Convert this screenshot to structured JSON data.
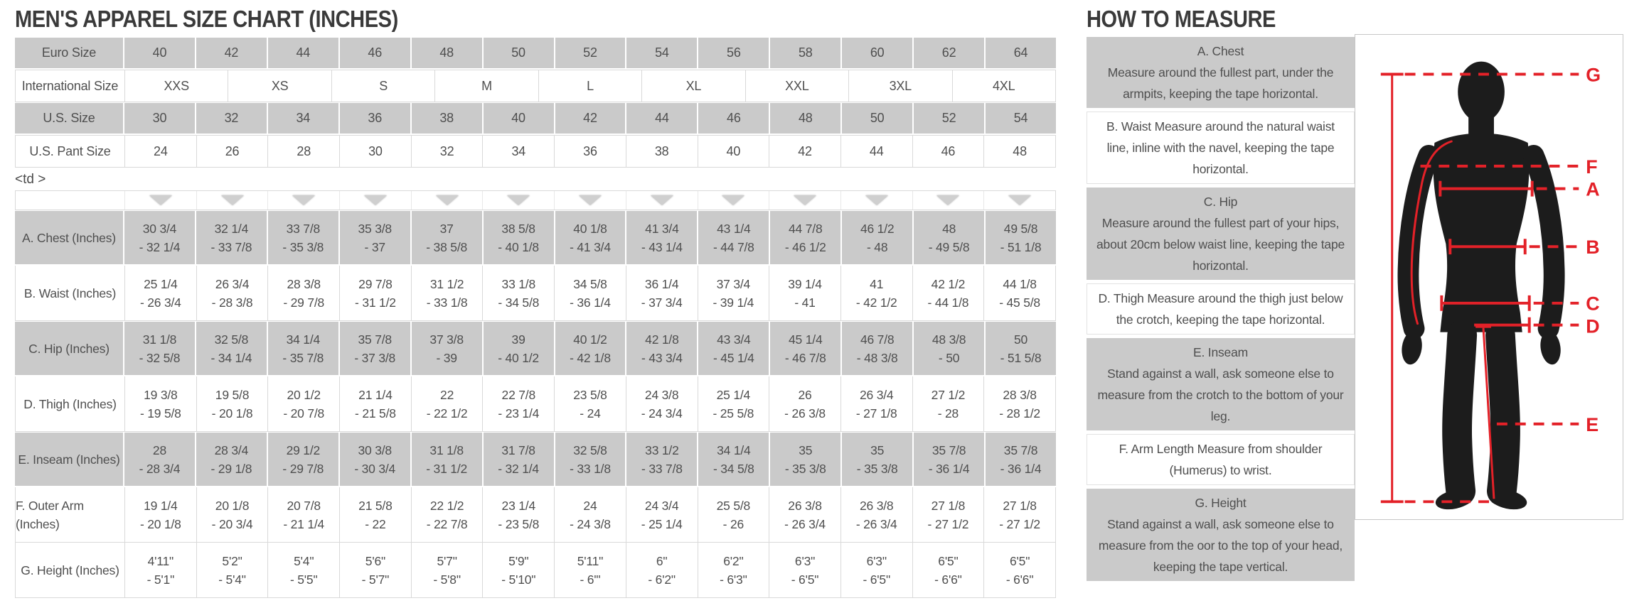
{
  "page": {
    "title_left": "MEN'S APPAREL SIZE CHART (INCHES)",
    "title_right": "HOW TO MEASURE",
    "glitch_text": "<td >"
  },
  "colors": {
    "accent": "#e32128",
    "shaded": "#cacaca",
    "text": "#4f4f4f",
    "title": "#3a3a3a",
    "border": "#d9d9d9",
    "silhouette": "#1c1c1c"
  },
  "size_table": {
    "header_rows": [
      {
        "key": "euro-size",
        "label": "Euro Size",
        "shaded": true,
        "cells": [
          "40",
          "42",
          "44",
          "46",
          "48",
          "50",
          "52",
          "54",
          "56",
          "58",
          "60",
          "62",
          "64"
        ]
      },
      {
        "key": "international-size",
        "label": "International Size",
        "shaded": false,
        "cells": [
          "XXS",
          "XS",
          "S",
          "M",
          "L",
          "XL",
          "XXL",
          "3XL",
          "4XL"
        ]
      },
      {
        "key": "us-size",
        "label": "U.S. Size",
        "shaded": true,
        "cells": [
          "30",
          "32",
          "34",
          "36",
          "38",
          "40",
          "42",
          "44",
          "46",
          "48",
          "50",
          "52",
          "54"
        ]
      },
      {
        "key": "us-pant-size",
        "label": "U.S. Pant Size",
        "shaded": false,
        "cells": [
          "24",
          "26",
          "28",
          "30",
          "32",
          "34",
          "36",
          "38",
          "40",
          "42",
          "44",
          "46",
          "48"
        ]
      }
    ],
    "triangle_row": {
      "icon": "triangle-down-icon",
      "count": 13
    },
    "body_rows": [
      {
        "key": "chest",
        "label": "A. Chest (Inches)",
        "shaded": true,
        "ranges": [
          [
            "30 3/4",
            "32 1/4"
          ],
          [
            "32 1/4",
            "33 7/8"
          ],
          [
            "33 7/8",
            "35 3/8"
          ],
          [
            "35 3/8",
            "37"
          ],
          [
            "37",
            "38 5/8"
          ],
          [
            "38 5/8",
            "40 1/8"
          ],
          [
            "40 1/8",
            "41 3/4"
          ],
          [
            "41 3/4",
            "43 1/4"
          ],
          [
            "43 1/4",
            "44 7/8"
          ],
          [
            "44 7/8",
            "46 1/2"
          ],
          [
            "46 1/2",
            "48"
          ],
          [
            "48",
            "49 5/8"
          ],
          [
            "49 5/8",
            "51 1/8"
          ]
        ]
      },
      {
        "key": "waist",
        "label": "B. Waist (Inches)",
        "shaded": false,
        "ranges": [
          [
            "25 1/4",
            "26 3/4"
          ],
          [
            "26 3/4",
            "28 3/8"
          ],
          [
            "28 3/8",
            "29 7/8"
          ],
          [
            "29 7/8",
            "31 1/2"
          ],
          [
            "31 1/2",
            "33 1/8"
          ],
          [
            "33 1/8",
            "34 5/8"
          ],
          [
            "34 5/8",
            "36 1/4"
          ],
          [
            "36 1/4",
            "37 3/4"
          ],
          [
            "37 3/4",
            "39 1/4"
          ],
          [
            "39 1/4",
            "41"
          ],
          [
            "41",
            "42 1/2"
          ],
          [
            "42 1/2",
            "44 1/8"
          ],
          [
            "44 1/8",
            "45 5/8"
          ]
        ]
      },
      {
        "key": "hip",
        "label": "C. Hip (Inches)",
        "shaded": true,
        "ranges": [
          [
            "31 1/8",
            "32 5/8"
          ],
          [
            "32 5/8",
            "34 1/4"
          ],
          [
            "34 1/4",
            "35 7/8"
          ],
          [
            "35 7/8",
            "37 3/8"
          ],
          [
            "37 3/8",
            "39"
          ],
          [
            "39",
            "40 1/2"
          ],
          [
            "40 1/2",
            "42 1/8"
          ],
          [
            "42 1/8",
            "43 3/4"
          ],
          [
            "43 3/4",
            "45 1/4"
          ],
          [
            "45 1/4",
            "46 7/8"
          ],
          [
            "46 7/8",
            "48 3/8"
          ],
          [
            "48 3/8",
            "50"
          ],
          [
            "50",
            "51 5/8"
          ]
        ]
      },
      {
        "key": "thigh",
        "label": "D. Thigh (Inches)",
        "shaded": false,
        "ranges": [
          [
            "19 3/8",
            "19 5/8"
          ],
          [
            "19 5/8",
            "20 1/8"
          ],
          [
            "20 1/2",
            "20 7/8"
          ],
          [
            "21 1/4",
            "21 5/8"
          ],
          [
            "22",
            "22 1/2"
          ],
          [
            "22 7/8",
            "23 1/4"
          ],
          [
            "23 5/8",
            "24"
          ],
          [
            "24 3/8",
            "24 3/4"
          ],
          [
            "25 1/4",
            "25 5/8"
          ],
          [
            "26",
            "26 3/8"
          ],
          [
            "26 3/4",
            "27 1/8"
          ],
          [
            "27 1/2",
            "28"
          ],
          [
            "28 3/8",
            "28 1/2"
          ]
        ]
      },
      {
        "key": "inseam",
        "label": "E. Inseam (Inches)",
        "shaded": true,
        "ranges": [
          [
            "28",
            "28 3/4"
          ],
          [
            "28 3/4",
            "29 1/8"
          ],
          [
            "29 1/2",
            "29 7/8"
          ],
          [
            "30 3/8",
            "30 3/4"
          ],
          [
            "31 1/8",
            "31 1/2"
          ],
          [
            "31 7/8",
            "32 1/4"
          ],
          [
            "32 5/8",
            "33 1/8"
          ],
          [
            "33 1/2",
            "33 7/8"
          ],
          [
            "34 1/4",
            "34 5/8"
          ],
          [
            "35",
            "35 3/8"
          ],
          [
            "35",
            "35 3/8"
          ],
          [
            "35 7/8",
            "36 1/4"
          ],
          [
            "35 7/8",
            "36 1/4"
          ]
        ]
      },
      {
        "key": "outer-arm",
        "label": "F. Outer Arm (Inches)",
        "shaded": false,
        "ranges": [
          [
            "19 1/4",
            "20 1/8"
          ],
          [
            "20 1/8",
            "20 3/4"
          ],
          [
            "20 7/8",
            "21 1/4"
          ],
          [
            "21 5/8",
            "22"
          ],
          [
            "22 1/2",
            "22 7/8"
          ],
          [
            "23 1/4",
            "23 5/8"
          ],
          [
            "24",
            "24 3/8"
          ],
          [
            "24 3/4",
            "25 1/4"
          ],
          [
            "25 5/8",
            "26"
          ],
          [
            "26 3/8",
            "26 3/4"
          ],
          [
            "26 3/8",
            "26 3/4"
          ],
          [
            "27 1/8",
            "27 1/2"
          ],
          [
            "27 1/8",
            "27 1/2"
          ]
        ]
      },
      {
        "key": "height",
        "label": "G. Height (Inches)",
        "shaded": false,
        "ranges": [
          [
            "4'11\"",
            "5'1\""
          ],
          [
            "5'2\"",
            "5'4\""
          ],
          [
            "5'4\"",
            "5'5\""
          ],
          [
            "5'6\"",
            "5'7\""
          ],
          [
            "5'7\"",
            "5'8\""
          ],
          [
            "5'9\"",
            "5'10\""
          ],
          [
            "5'11\"",
            "6'\""
          ],
          [
            "6\"",
            "6'2\""
          ],
          [
            "6'2\"",
            "6'3\""
          ],
          [
            "6'3\"",
            "6'5\""
          ],
          [
            "6'3\"",
            "6'5\""
          ],
          [
            "6'5\"",
            "6'6\""
          ],
          [
            "6'5\"",
            "6'6\""
          ]
        ]
      }
    ]
  },
  "how_to_measure": {
    "blocks": [
      {
        "shaded": true,
        "heading": "A. Chest",
        "text": "Measure around the fullest part, under the armpits, keeping the tape horizontal."
      },
      {
        "shaded": false,
        "heading": "",
        "text": "B. Waist Measure around the natural waist line, inline with the navel, keeping the tape horizontal."
      },
      {
        "shaded": true,
        "heading": "C. Hip",
        "text": "Measure around the fullest part of your hips, about 20cm below waist line, keeping the tape horizontal."
      },
      {
        "shaded": false,
        "heading": "",
        "text": "D. Thigh Measure around the thigh just below the crotch, keeping the tape horizontal."
      },
      {
        "shaded": true,
        "heading": "E. Inseam",
        "text": "Stand against a wall, ask someone else to measure from the crotch to the bottom of your leg."
      },
      {
        "shaded": false,
        "heading": "",
        "text": "F. Arm Length Measure from shoulder (Humerus) to wrist."
      },
      {
        "shaded": true,
        "heading": "G. Height",
        "text": "Stand against a wall, ask someone else to measure from the oor to the top of your head, keeping the tape vertical."
      }
    ]
  },
  "figure": {
    "labels": [
      "G",
      "F",
      "A",
      "B",
      "C",
      "D",
      "E"
    ]
  }
}
